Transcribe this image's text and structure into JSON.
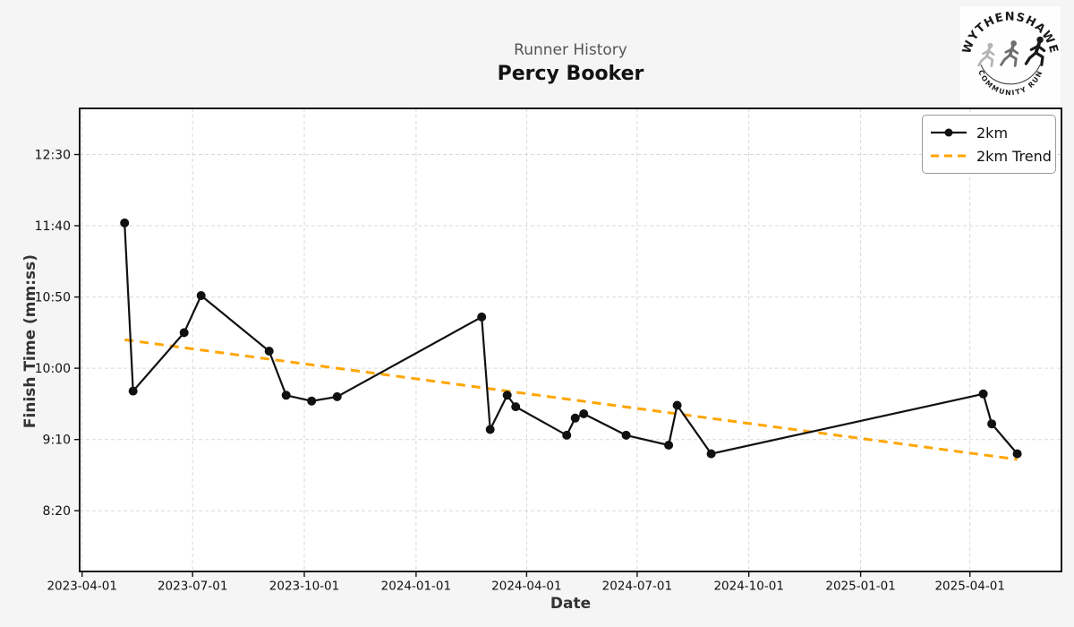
{
  "colors": {
    "figure_background": "#f5f5f5",
    "plot_background": "#ffffff",
    "gridline": "#d9d9d9",
    "spine": "#000000",
    "series_line": "#111111",
    "trend_line": "#FFA500"
  },
  "logo": {
    "top_text": "WYTHENSHAWE",
    "bottom_text": "COMMUNITY RUN",
    "runner_colors": [
      "#b5b5b5",
      "#6e6e6e",
      "#1a1a1a"
    ]
  },
  "chart_data": {
    "type": "line",
    "suptitle": "Runner History",
    "title": "Percy Booker",
    "xlabel": "Date",
    "ylabel": "Finish Time (mm:ss)",
    "grid": true,
    "legend_position": "upper right",
    "x_ticks": [
      "2023-04-01",
      "2023-07-01",
      "2023-10-01",
      "2024-01-01",
      "2024-04-01",
      "2024-07-01",
      "2024-10-01",
      "2025-01-01",
      "2025-04-01"
    ],
    "y_ticks": [
      "12:30",
      "11:40",
      "10:50",
      "10:00",
      "9:10",
      "8:20"
    ],
    "series": [
      {
        "name": "2km",
        "style": "solid",
        "marker": "circle",
        "color": "#111111",
        "points": [
          {
            "date": "2023-05-06",
            "time": "11:42"
          },
          {
            "date": "2023-05-13",
            "time": "9:44"
          },
          {
            "date": "2023-06-24",
            "time": "10:25"
          },
          {
            "date": "2023-07-08",
            "time": "10:51"
          },
          {
            "date": "2023-09-02",
            "time": "10:12"
          },
          {
            "date": "2023-09-16",
            "time": "9:41"
          },
          {
            "date": "2023-10-07",
            "time": "9:37"
          },
          {
            "date": "2023-10-28",
            "time": "9:40"
          },
          {
            "date": "2024-02-24",
            "time": "10:36"
          },
          {
            "date": "2024-03-02",
            "time": "9:17"
          },
          {
            "date": "2024-03-16",
            "time": "9:41"
          },
          {
            "date": "2024-03-23",
            "time": "9:33"
          },
          {
            "date": "2024-05-04",
            "time": "9:13"
          },
          {
            "date": "2024-05-11",
            "time": "9:25"
          },
          {
            "date": "2024-05-18",
            "time": "9:28"
          },
          {
            "date": "2024-06-22",
            "time": "9:13"
          },
          {
            "date": "2024-07-27",
            "time": "9:06"
          },
          {
            "date": "2024-08-03",
            "time": "9:34"
          },
          {
            "date": "2024-08-31",
            "time": "9:00"
          },
          {
            "date": "2025-04-12",
            "time": "9:42"
          },
          {
            "date": "2025-04-19",
            "time": "9:21"
          },
          {
            "date": "2025-05-10",
            "time": "9:00"
          }
        ]
      },
      {
        "name": "2km Trend",
        "style": "dashed",
        "marker": "none",
        "color": "#FFA500",
        "points": [
          {
            "date": "2023-05-06",
            "time": "10:20"
          },
          {
            "date": "2025-05-10",
            "time": "8:56"
          }
        ]
      }
    ]
  }
}
